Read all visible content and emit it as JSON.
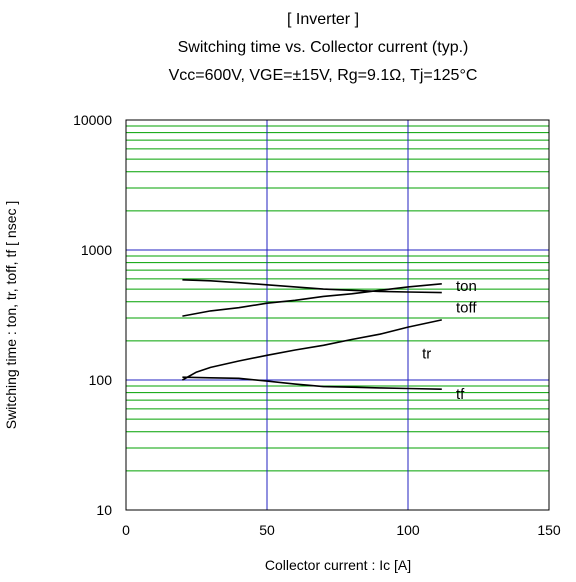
{
  "chart_data": {
    "type": "line",
    "title": "[ Inverter ]",
    "subtitle": "Switching time  vs.  Collector current  (typ.)",
    "conditions": "Vcc=600V, VGE=±15V, Rg=9.1Ω, Tj=125°C",
    "xlabel": "Collector current : Ic [A]",
    "ylabel": "Switching time  :  ton, tr, toff, tf  [ nsec ]",
    "xlim": [
      0,
      150
    ],
    "ylim": [
      10,
      10000
    ],
    "yscale": "log",
    "x_ticks": [
      "0",
      "50",
      "100",
      "150"
    ],
    "y_ticks": [
      "10",
      "100",
      "1000",
      "10000"
    ],
    "grid": true,
    "colors": {
      "major_grid": "#2020c0",
      "minor_grid": "#00a000",
      "curve": "#000000"
    },
    "series": [
      {
        "name": "ton",
        "x": [
          20,
          30,
          40,
          50,
          60,
          70,
          80,
          90,
          100,
          112
        ],
        "y": [
          310,
          340,
          360,
          390,
          410,
          440,
          460,
          490,
          520,
          550
        ]
      },
      {
        "name": "toff",
        "x": [
          20,
          30,
          40,
          50,
          60,
          70,
          80,
          90,
          100,
          112
        ],
        "y": [
          590,
          580,
          560,
          540,
          520,
          500,
          490,
          480,
          475,
          470
        ]
      },
      {
        "name": "tr",
        "x": [
          20,
          25,
          30,
          40,
          50,
          60,
          70,
          80,
          90,
          100,
          112
        ],
        "y": [
          100,
          115,
          125,
          140,
          155,
          170,
          185,
          205,
          225,
          255,
          290
        ]
      },
      {
        "name": "tf",
        "x": [
          20,
          30,
          40,
          50,
          60,
          70,
          80,
          90,
          100,
          112
        ],
        "y": [
          105,
          104,
          103,
          98,
          93,
          89,
          88,
          87,
          86,
          85
        ]
      }
    ],
    "series_label_positions": {
      "ton": [
        117,
        530
      ],
      "toff": [
        117,
        360
      ],
      "tr": [
        105,
        160
      ],
      "tf": [
        117,
        78
      ]
    }
  }
}
